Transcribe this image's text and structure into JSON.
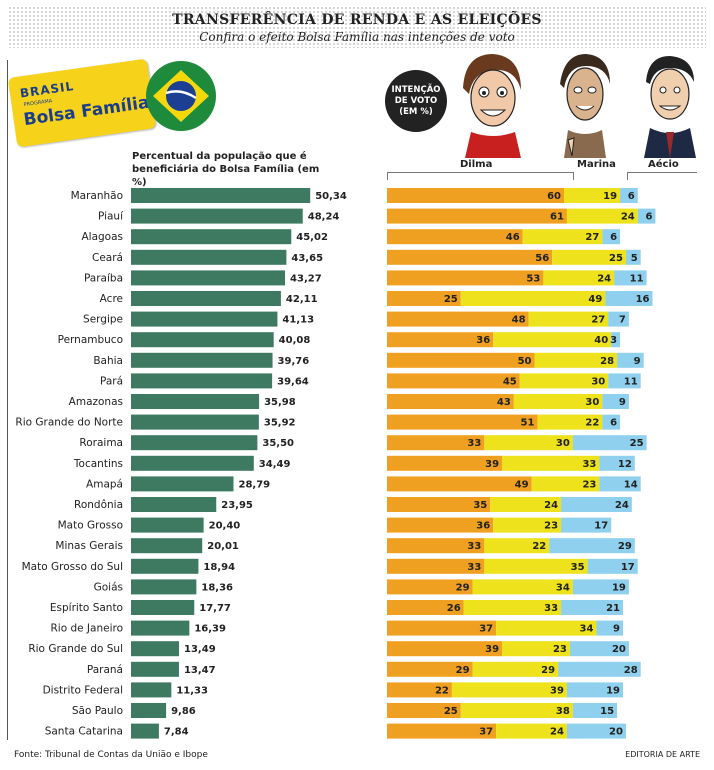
{
  "header": {
    "title": "TRANSFERÊNCIA DE RENDA E AS ELEIÇÕES",
    "subtitle": "Confira o efeito Bolsa Família nas intenções de voto"
  },
  "card": {
    "logo_text": "BRASIL",
    "small_text": "PROGRAMA",
    "name": "Bolsa Família"
  },
  "legend_text": "Percentual da população que é beneficiária do Bolsa Família (em %)",
  "vote_header": "INTENÇÃO DE VOTO (EM %)",
  "colors": {
    "green": "#3e7a62",
    "dilma": "#f0a020",
    "marina": "#ede21c",
    "aecio": "#8ed0ee"
  },
  "chart_data": [
    {
      "type": "bar",
      "title": "",
      "xlabel": "",
      "ylabel": "Percentual da população que é beneficiária do Bolsa Família (em %)",
      "categories": [
        "Maranhão",
        "Piauí",
        "Alagoas",
        "Ceará",
        "Paraíba",
        "Acre",
        "Sergipe",
        "Pernambuco",
        "Bahia",
        "Pará",
        "Amazonas",
        "Rio Grande do Norte",
        "Roraima",
        "Tocantins",
        "Amapá",
        "Rondônia",
        "Mato Grosso",
        "Minas Gerais",
        "Mato Grosso do Sul",
        "Goiás",
        "Espírito Santo",
        "Rio de Janeiro",
        "Rio Grande do Sul",
        "Paraná",
        "Distrito Federal",
        "São Paulo",
        "Santa Catarina"
      ],
      "values": [
        50.34,
        48.24,
        45.02,
        43.65,
        43.27,
        42.11,
        41.13,
        40.08,
        39.76,
        39.64,
        35.98,
        35.92,
        35.5,
        34.49,
        28.79,
        23.95,
        20.4,
        20.01,
        18.94,
        18.36,
        17.77,
        16.39,
        13.49,
        13.47,
        11.33,
        9.86,
        7.84
      ],
      "value_labels": [
        "50,34",
        "48,24",
        "45,02",
        "43,65",
        "43,27",
        "42,11",
        "41,13",
        "40,08",
        "39,76",
        "39,64",
        "35,98",
        "35,92",
        "35,50",
        "34,49",
        "28,79",
        "23,95",
        "20,40",
        "20,01",
        "18,94",
        "18,36",
        "17,77",
        "16,39",
        "13,49",
        "13,47",
        "11,33",
        "9,86",
        "7,84"
      ],
      "orientation": "horizontal",
      "xlim": [
        0,
        55
      ]
    },
    {
      "type": "bar",
      "stacked": true,
      "title": "INTENÇÃO DE VOTO (EM %)",
      "categories": [
        "Maranhão",
        "Piauí",
        "Alagoas",
        "Ceará",
        "Paraíba",
        "Acre",
        "Sergipe",
        "Pernambuco",
        "Bahia",
        "Pará",
        "Amazonas",
        "Rio Grande do Norte",
        "Roraima",
        "Tocantins",
        "Amapá",
        "Rondônia",
        "Mato Grosso",
        "Minas Gerais",
        "Mato Grosso do Sul",
        "Goiás",
        "Espírito Santo",
        "Rio de Janeiro",
        "Rio Grande do Sul",
        "Paraná",
        "Distrito Federal",
        "São Paulo",
        "Santa Catarina"
      ],
      "series": [
        {
          "name": "Dilma",
          "values": [
            60,
            61,
            46,
            56,
            53,
            25,
            48,
            36,
            50,
            45,
            43,
            51,
            33,
            39,
            49,
            35,
            36,
            33,
            33,
            29,
            26,
            37,
            39,
            29,
            22,
            25,
            37
          ]
        },
        {
          "name": "Marina",
          "values": [
            19,
            24,
            27,
            25,
            24,
            49,
            27,
            40,
            28,
            30,
            30,
            22,
            30,
            33,
            23,
            24,
            23,
            22,
            35,
            34,
            33,
            34,
            23,
            29,
            39,
            38,
            24
          ]
        },
        {
          "name": "Aécio",
          "values": [
            6,
            6,
            6,
            5,
            11,
            16,
            7,
            3,
            9,
            11,
            9,
            6,
            25,
            12,
            14,
            24,
            17,
            29,
            17,
            19,
            21,
            9,
            20,
            28,
            19,
            15,
            20
          ]
        }
      ],
      "orientation": "horizontal",
      "xlim": [
        0,
        100
      ]
    }
  ],
  "footer": {
    "source": "Fonte: Tribunal de Contas da União e Ibope",
    "credit": "EDITORIA DE ARTE"
  }
}
